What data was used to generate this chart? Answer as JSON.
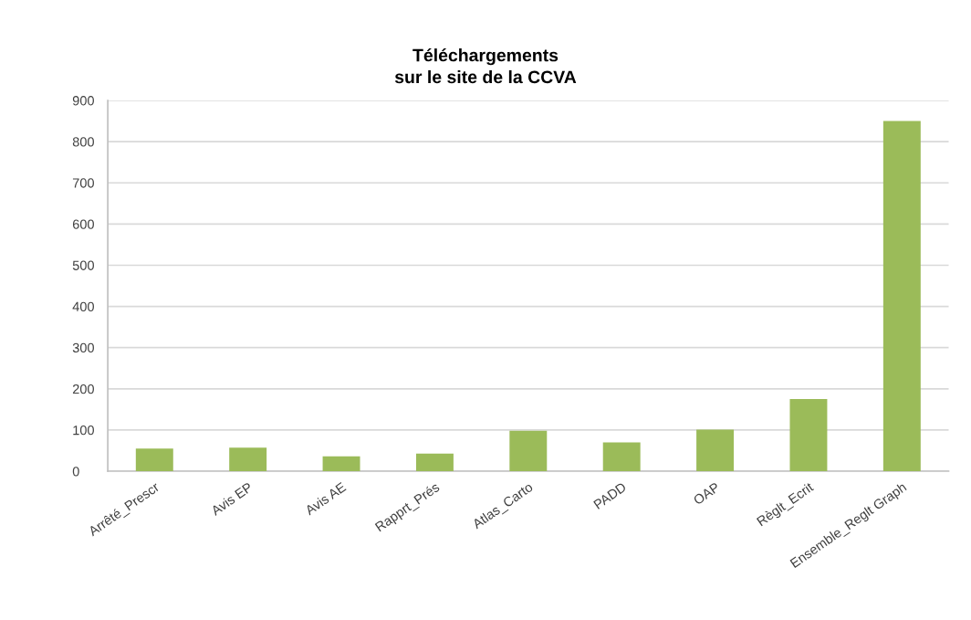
{
  "chart_data": {
    "type": "bar",
    "title": "Téléchargements\nsur le site de la CCVA",
    "categories": [
      "Arrêté_Prescr",
      "Avis EP",
      "Avis AE",
      "Rapprt_Prés",
      "Atlas_Carto",
      "PADD",
      "OAP",
      "Règlt_Ecrit",
      "Ensemble_Reglt Graph"
    ],
    "values": [
      55,
      57,
      36,
      43,
      98,
      70,
      101,
      175,
      850
    ],
    "color": "#9bbb59",
    "ylim": [
      0,
      900
    ],
    "yticks": [
      0,
      100,
      200,
      300,
      400,
      500,
      600,
      700,
      800,
      900
    ],
    "grid": "y",
    "legend": false
  }
}
